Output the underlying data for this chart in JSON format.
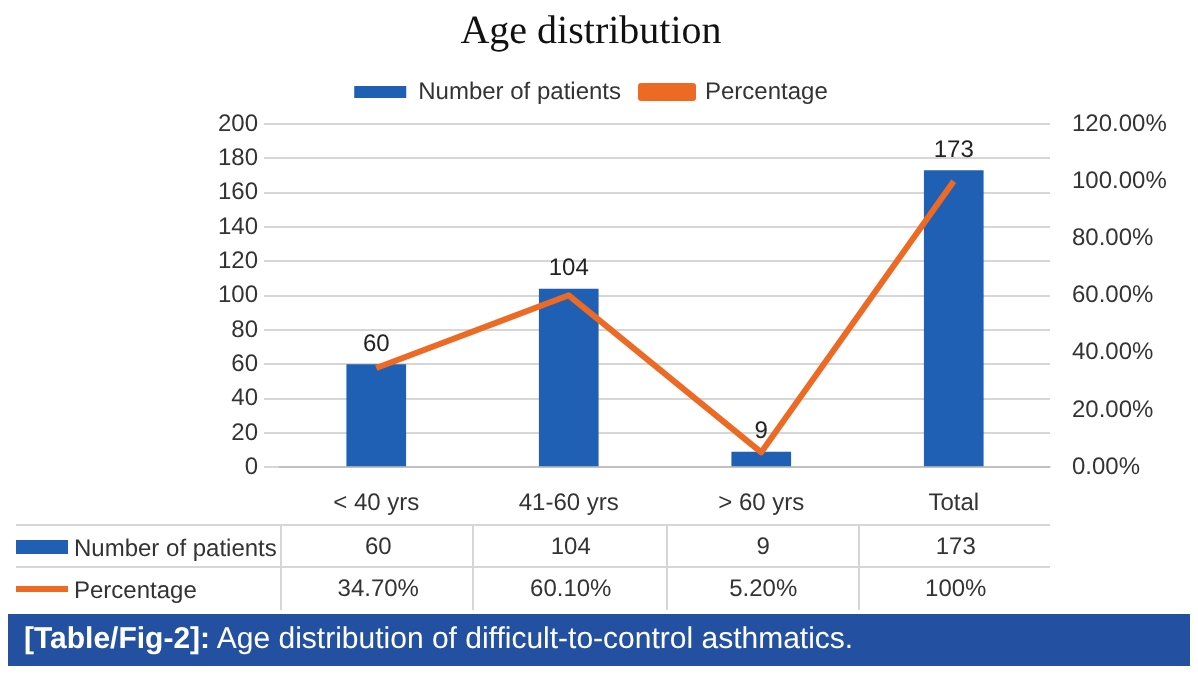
{
  "chart_data": {
    "type": "bar",
    "title": "Age distribution",
    "categories": [
      "< 40 yrs",
      "41-60 yrs",
      "> 60 yrs",
      "Total"
    ],
    "series": [
      {
        "name": "Number of patients",
        "color": "#1f5fb4",
        "values": [
          60,
          104,
          9,
          173
        ],
        "value_labels": [
          "60",
          "104",
          "9",
          "173"
        ]
      },
      {
        "name": "Percentage",
        "type": "line",
        "axis": "y2",
        "color": "#ed6a24",
        "values": [
          34.7,
          60.1,
          5.2,
          100
        ],
        "value_labels": [
          "34.70%",
          "60.10%",
          "5.20%",
          "100%"
        ]
      }
    ],
    "ylim": [
      0,
      200
    ],
    "yticks": [
      0,
      20,
      40,
      60,
      80,
      100,
      120,
      140,
      160,
      180,
      200
    ],
    "y2lim": [
      0,
      120
    ],
    "y2ticks": [
      {
        "value": 0,
        "label": "0.00%"
      },
      {
        "value": 20,
        "label": "20.00%"
      },
      {
        "value": 40,
        "label": "40.00%"
      },
      {
        "value": 60,
        "label": "60.00%"
      },
      {
        "value": 80,
        "label": "80.00%"
      },
      {
        "value": 100,
        "label": "100.00%"
      },
      {
        "value": 120,
        "label": "120.00%"
      }
    ],
    "grid": "y",
    "legend": "top",
    "marker": "none",
    "annotations": [
      "[Table/Fig-2]: Age distribution of difficult-to-control asthmatics."
    ]
  }
}
